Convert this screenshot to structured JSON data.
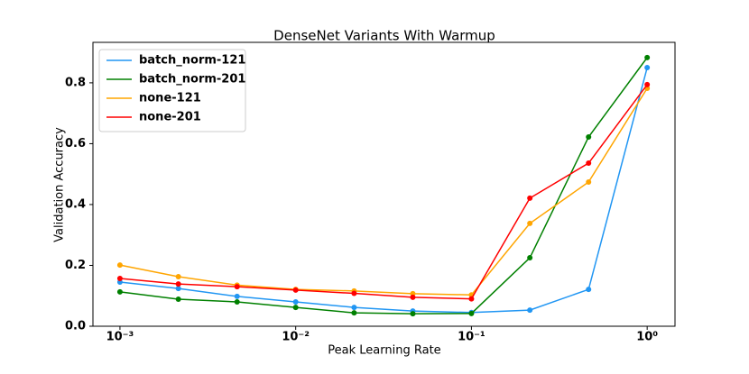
{
  "chart_data": {
    "type": "line",
    "title": "DenseNet Variants With Warmup",
    "x_label": "Peak Learning Rate",
    "y_label": "Validation Accuracy",
    "log_x": true,
    "legend": "upper left",
    "x": [
      0.001,
      0.00215,
      0.00464,
      0.01,
      0.0215,
      0.0464,
      0.1,
      0.215,
      0.464,
      1
    ],
    "series": [
      {
        "name": "batch_norm-121",
        "color": "#2196f3",
        "values": [
          0.145,
          0.124,
          0.098,
          0.08,
          0.062,
          0.05,
          0.045,
          0.053,
          0.121,
          0.85
        ]
      },
      {
        "name": "batch_norm-201",
        "color": "#008000",
        "values": [
          0.113,
          0.089,
          0.08,
          0.062,
          0.044,
          0.041,
          0.042,
          0.225,
          0.622,
          0.883
        ]
      },
      {
        "name": "none-121",
        "color": "#ffa500",
        "values": [
          0.201,
          0.163,
          0.135,
          0.121,
          0.116,
          0.107,
          0.103,
          0.338,
          0.474,
          0.782
        ]
      },
      {
        "name": "none-201",
        "color": "#ff0000",
        "values": [
          0.157,
          0.139,
          0.13,
          0.119,
          0.108,
          0.095,
          0.09,
          0.421,
          0.536,
          0.794
        ]
      }
    ],
    "xlim": [
      0.000702,
      1.44
    ],
    "ylim": [
      0,
      0.933
    ],
    "xticks": [
      {
        "value": 0.001,
        "label": "10⁻³"
      },
      {
        "value": 0.01,
        "label": "10⁻²"
      },
      {
        "value": 0.1,
        "label": "10⁻¹"
      },
      {
        "value": 1,
        "label": "10⁰"
      }
    ],
    "yticks": [
      {
        "value": 0,
        "label": "0.0"
      },
      0.2,
      0.4,
      0.6,
      0.8
    ]
  }
}
